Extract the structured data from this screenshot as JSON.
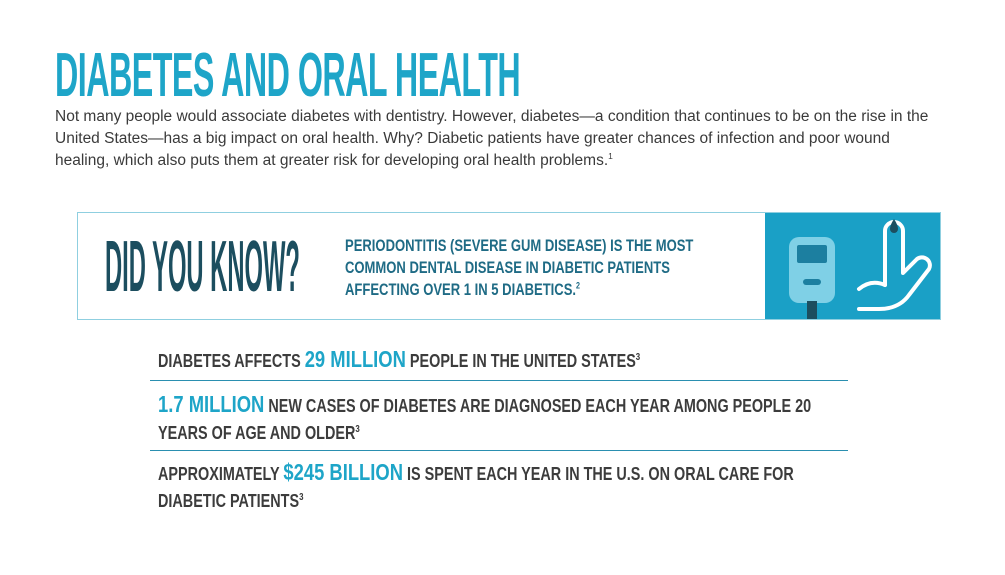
{
  "header": {
    "title": "DIABETES AND ORAL HEALTH"
  },
  "intro": {
    "text": "Not many people would associate diabetes with dentistry. However, diabetes—a condition that continues to be on the rise in the United States—has a big impact on oral health. Why? Diabetic patients have greater chances of infection and poor wound healing, which also puts them at greater risk for developing oral health problems.",
    "footnote": "1"
  },
  "callout": {
    "heading": "DID YOU KNOW?",
    "text": "PERIODONTITIS (SEVERE GUM DISEASE) IS THE MOST COMMON DENTAL DISEASE IN DIABETIC PATIENTS AFFECTING OVER 1 IN 5 DIABETICS.",
    "footnote": "2"
  },
  "stats": [
    {
      "prefix": "DIABETES AFFECTS",
      "highlight": "29 MILLION",
      "suffix": "PEOPLE IN THE UNITED STATES",
      "footnote": "3"
    },
    {
      "highlight": "1.7 MILLION",
      "suffix": "NEW CASES OF DIABETES ARE DIAGNOSED EACH YEAR AMONG PEOPLE 20 YEARS OF AGE AND OLDER",
      "footnote": "3"
    },
    {
      "prefix": "APPROXIMATELY",
      "highlight": "$245 BILLION",
      "suffix": "IS SPENT EACH YEAR IN THE U.S. ON ORAL CARE FOR DIABETIC PATIENTS",
      "footnote": "3"
    }
  ]
}
